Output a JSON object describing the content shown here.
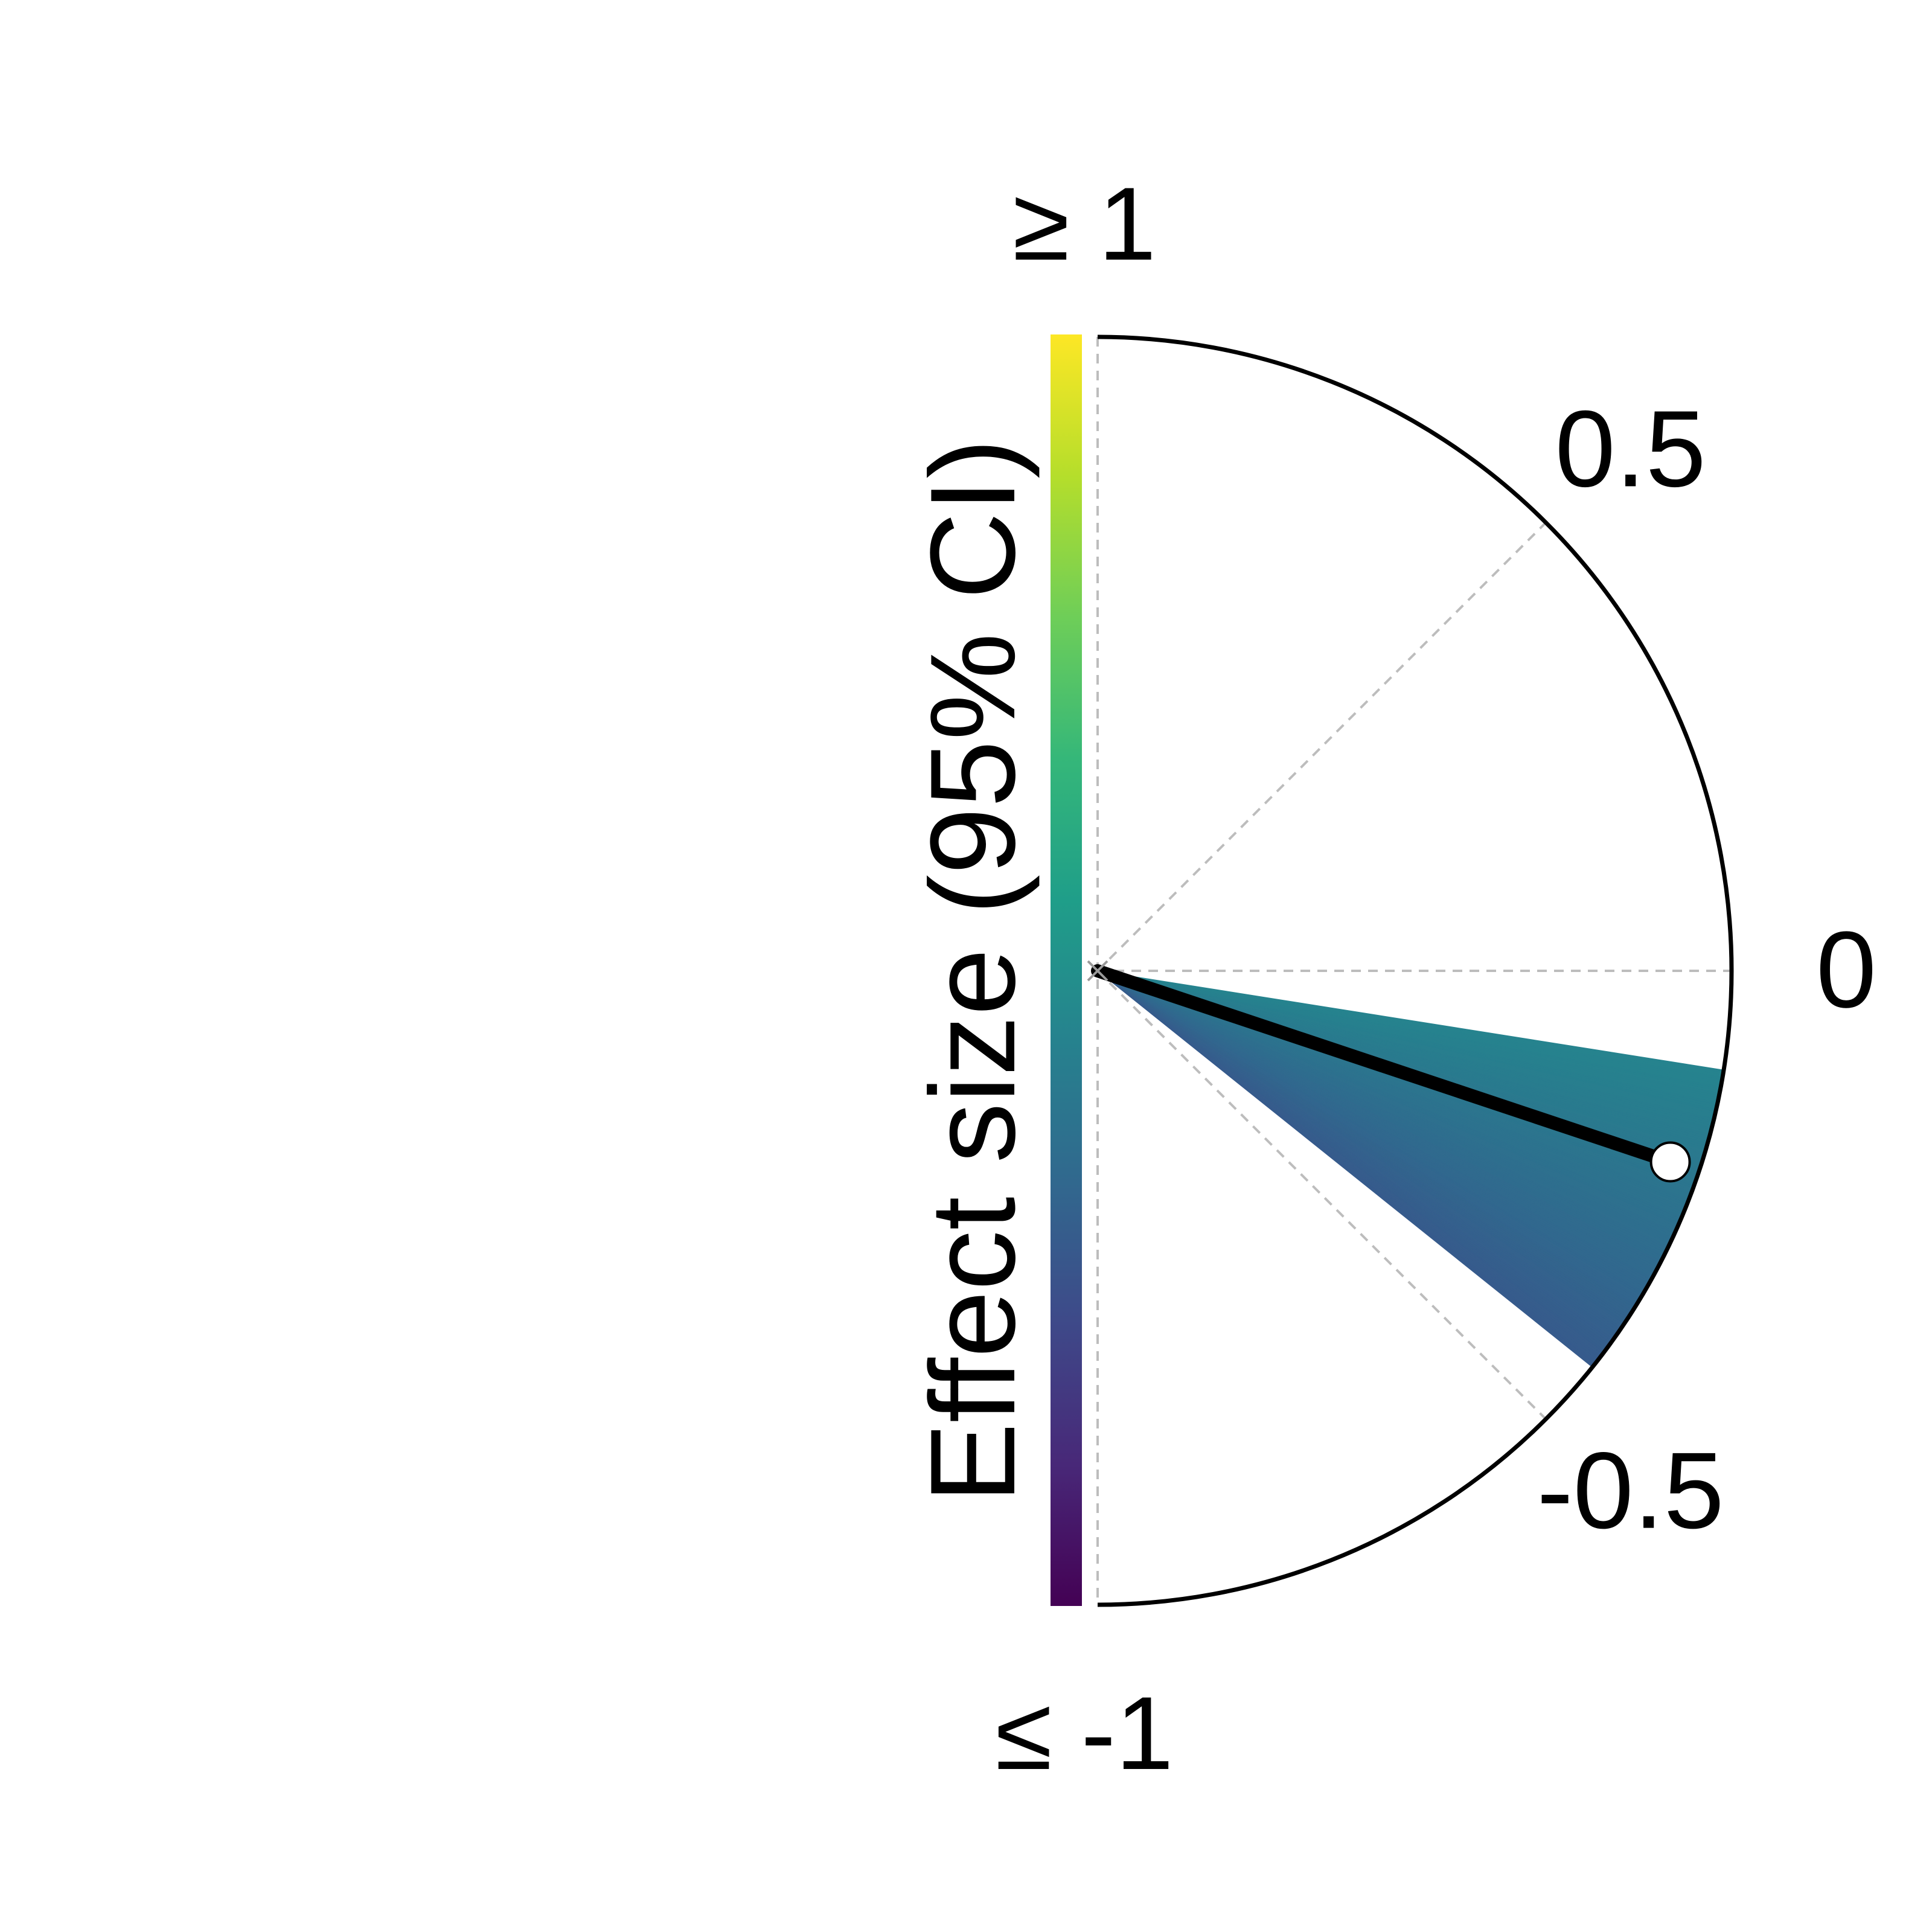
{
  "chart_data": {
    "type": "semicircle-gauge",
    "title": "",
    "ylabel": "Effect size (95% CI)",
    "estimate": -0.205,
    "ci_lower": -0.43,
    "ci_upper": -0.1,
    "range": [
      -1,
      1
    ],
    "ticks": [
      {
        "value": 0.5,
        "label": "0.5"
      },
      {
        "value": 0,
        "label": "0"
      },
      {
        "value": -0.5,
        "label": "-0.5"
      }
    ],
    "colorbar": {
      "colormap": "viridis",
      "top_label": "≥ 1",
      "bottom_label": "≤ -1",
      "stops": [
        "#fde725",
        "#b5de2b",
        "#6ece58",
        "#35b779",
        "#1f9e89",
        "#26828e",
        "#31688e",
        "#3e4989",
        "#482878",
        "#440154"
      ]
    },
    "colors": {
      "outline": "#000000",
      "grid": "#bdbdbd",
      "estimate_line": "#000000",
      "marker_fill": "#ffffff"
    }
  }
}
